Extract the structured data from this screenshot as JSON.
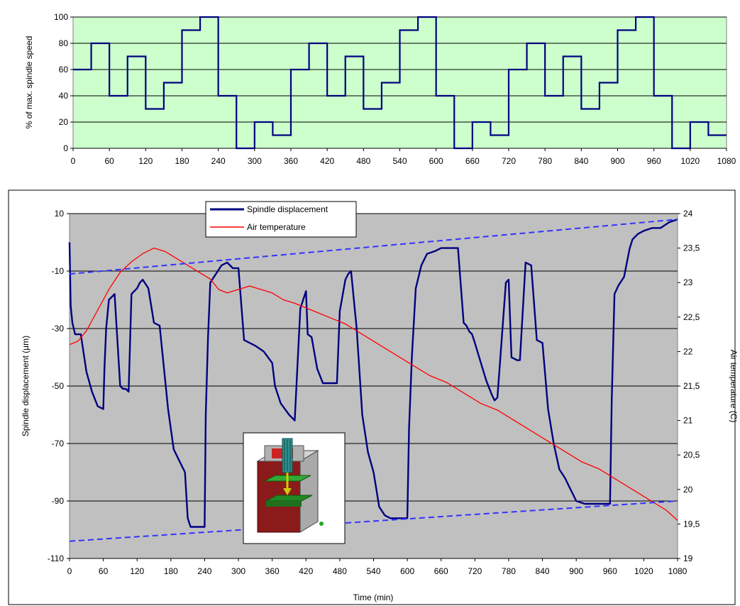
{
  "chart_data": [
    {
      "type": "line",
      "step": true,
      "ylabel": "% of max. spindle speed",
      "xlabel": "",
      "xlim": [
        0,
        1080
      ],
      "ylim": [
        0,
        100
      ],
      "x_ticks": [
        0,
        60,
        120,
        180,
        240,
        300,
        360,
        420,
        480,
        540,
        600,
        660,
        720,
        780,
        840,
        900,
        960,
        1020,
        1080
      ],
      "y_ticks": [
        0,
        20,
        40,
        60,
        80,
        100
      ],
      "grid": "horizontal",
      "background_color": "#ccffcc",
      "line_color": "#000080",
      "series": [
        {
          "name": "",
          "x": [
            0,
            30,
            60,
            90,
            120,
            150,
            180,
            210,
            240,
            270,
            300,
            330,
            360,
            390,
            420,
            450,
            480,
            510,
            540,
            570,
            600,
            630,
            660,
            690,
            720,
            750,
            780,
            810,
            840,
            870,
            900,
            930,
            960,
            990,
            1020,
            1050,
            1080
          ],
          "values": [
            60,
            80,
            40,
            70,
            30,
            50,
            90,
            100,
            40,
            0,
            20,
            10,
            60,
            80,
            40,
            70,
            30,
            50,
            90,
            100,
            40,
            0,
            20,
            10,
            60,
            80,
            40,
            70,
            30,
            50,
            90,
            100,
            40,
            0,
            20,
            10,
            10
          ]
        }
      ]
    },
    {
      "type": "line",
      "xlabel": "Time (min)",
      "ylabel": "Spindle displacement (µm)",
      "y2label": "Air temperature (C)",
      "xlim": [
        0,
        1080
      ],
      "ylim": [
        -110,
        10
      ],
      "y2lim": [
        19,
        24
      ],
      "x_ticks": [
        0,
        60,
        120,
        180,
        240,
        300,
        360,
        420,
        480,
        540,
        600,
        660,
        720,
        780,
        840,
        900,
        960,
        1020,
        1080
      ],
      "y_ticks": [
        -110,
        -90,
        -70,
        -50,
        -30,
        -10,
        10
      ],
      "y2_ticks": [
        "19",
        "19,5",
        "20",
        "20,5",
        "21",
        "21,5",
        "22",
        "22,5",
        "23",
        "23,5",
        "24"
      ],
      "grid": "horizontal",
      "background_color": "#c0c0c0",
      "legend_position": "top-center",
      "series": [
        {
          "name": "Spindle displacement",
          "color": "#000080",
          "axis": "left",
          "x": [
            0,
            2,
            5,
            10,
            20,
            30,
            40,
            50,
            60,
            62,
            65,
            70,
            80,
            90,
            95,
            100,
            105,
            110,
            120,
            125,
            130,
            140,
            150,
            160,
            175,
            185,
            195,
            205,
            210,
            215,
            225,
            240,
            242,
            246,
            250,
            260,
            270,
            280,
            290,
            300,
            310,
            330,
            345,
            360,
            365,
            375,
            390,
            400,
            410,
            420,
            423,
            430,
            440,
            450,
            470,
            475,
            480,
            490,
            495,
            500,
            510,
            520,
            530,
            540,
            545,
            550,
            560,
            570,
            580,
            590,
            600,
            603,
            608,
            615,
            625,
            635,
            650,
            660,
            670,
            680,
            690,
            700,
            705,
            710,
            715,
            720,
            740,
            750,
            755,
            760,
            775,
            780,
            785,
            795,
            800,
            810,
            820,
            830,
            840,
            850,
            860,
            870,
            880,
            900,
            915,
            940,
            960,
            963,
            968,
            975,
            985,
            995,
            1000,
            1010,
            1020,
            1035,
            1050,
            1065,
            1080
          ],
          "values": [
            0,
            -22,
            -28,
            -32,
            -32,
            -45,
            -52,
            -57,
            -58,
            -44,
            -30,
            -20,
            -18,
            -50,
            -51,
            -51,
            -52,
            -18,
            -16,
            -14,
            -13,
            -16,
            -28,
            -29,
            -58,
            -72,
            -76,
            -80,
            -96,
            -99,
            -99,
            -99,
            -60,
            -33,
            -14,
            -11,
            -8,
            -7,
            -9,
            -9,
            -34,
            -36,
            -38,
            -42,
            -50,
            -56,
            -60,
            -62,
            -23,
            -17,
            -32,
            -33,
            -44,
            -49,
            -49,
            -49,
            -24,
            -13,
            -11,
            -10,
            -30,
            -60,
            -73,
            -80,
            -86,
            -92,
            -95,
            -96,
            -96,
            -96,
            -96,
            -65,
            -40,
            -16,
            -8,
            -4,
            -3,
            -2,
            -2,
            -2,
            -2,
            -28,
            -29,
            -31,
            -32,
            -35,
            -48,
            -53,
            -55,
            -54,
            -14,
            -13,
            -40,
            -41,
            -41,
            -7,
            -8,
            -34,
            -35,
            -58,
            -70,
            -79,
            -82,
            -90,
            -91,
            -91,
            -91,
            -55,
            -18,
            -15,
            -12,
            -2,
            1,
            3,
            4,
            5,
            5,
            7,
            8
          ]
        },
        {
          "name": "Air temperature",
          "color": "#ff0000",
          "axis": "right",
          "x": [
            0,
            15,
            30,
            50,
            70,
            90,
            110,
            130,
            150,
            170,
            190,
            210,
            230,
            250,
            265,
            280,
            300,
            320,
            340,
            360,
            380,
            400,
            430,
            460,
            490,
            520,
            550,
            580,
            610,
            640,
            670,
            700,
            730,
            760,
            790,
            820,
            850,
            880,
            910,
            940,
            970,
            1000,
            1030,
            1060,
            1080
          ],
          "values": [
            22.1,
            22.15,
            22.3,
            22.6,
            22.9,
            23.15,
            23.3,
            23.42,
            23.5,
            23.45,
            23.35,
            23.25,
            23.15,
            23.05,
            22.9,
            22.85,
            22.9,
            22.95,
            22.9,
            22.85,
            22.75,
            22.7,
            22.6,
            22.5,
            22.4,
            22.25,
            22.1,
            21.95,
            21.8,
            21.65,
            21.55,
            21.4,
            21.25,
            21.15,
            21.0,
            20.85,
            20.7,
            20.55,
            20.4,
            20.3,
            20.15,
            20.0,
            19.85,
            19.7,
            19.55
          ]
        },
        {
          "name": "",
          "style": "dashed",
          "color": "#3333ff",
          "axis": "left",
          "x": [
            0,
            1080
          ],
          "values": [
            -11,
            8
          ]
        },
        {
          "name": "",
          "style": "dashed",
          "color": "#3333ff",
          "axis": "left",
          "x": [
            0,
            1080
          ],
          "values": [
            -104,
            -90
          ]
        }
      ]
    }
  ],
  "inset": {
    "kind": "machine-diagram",
    "icon": "spindle-machine-icon"
  }
}
